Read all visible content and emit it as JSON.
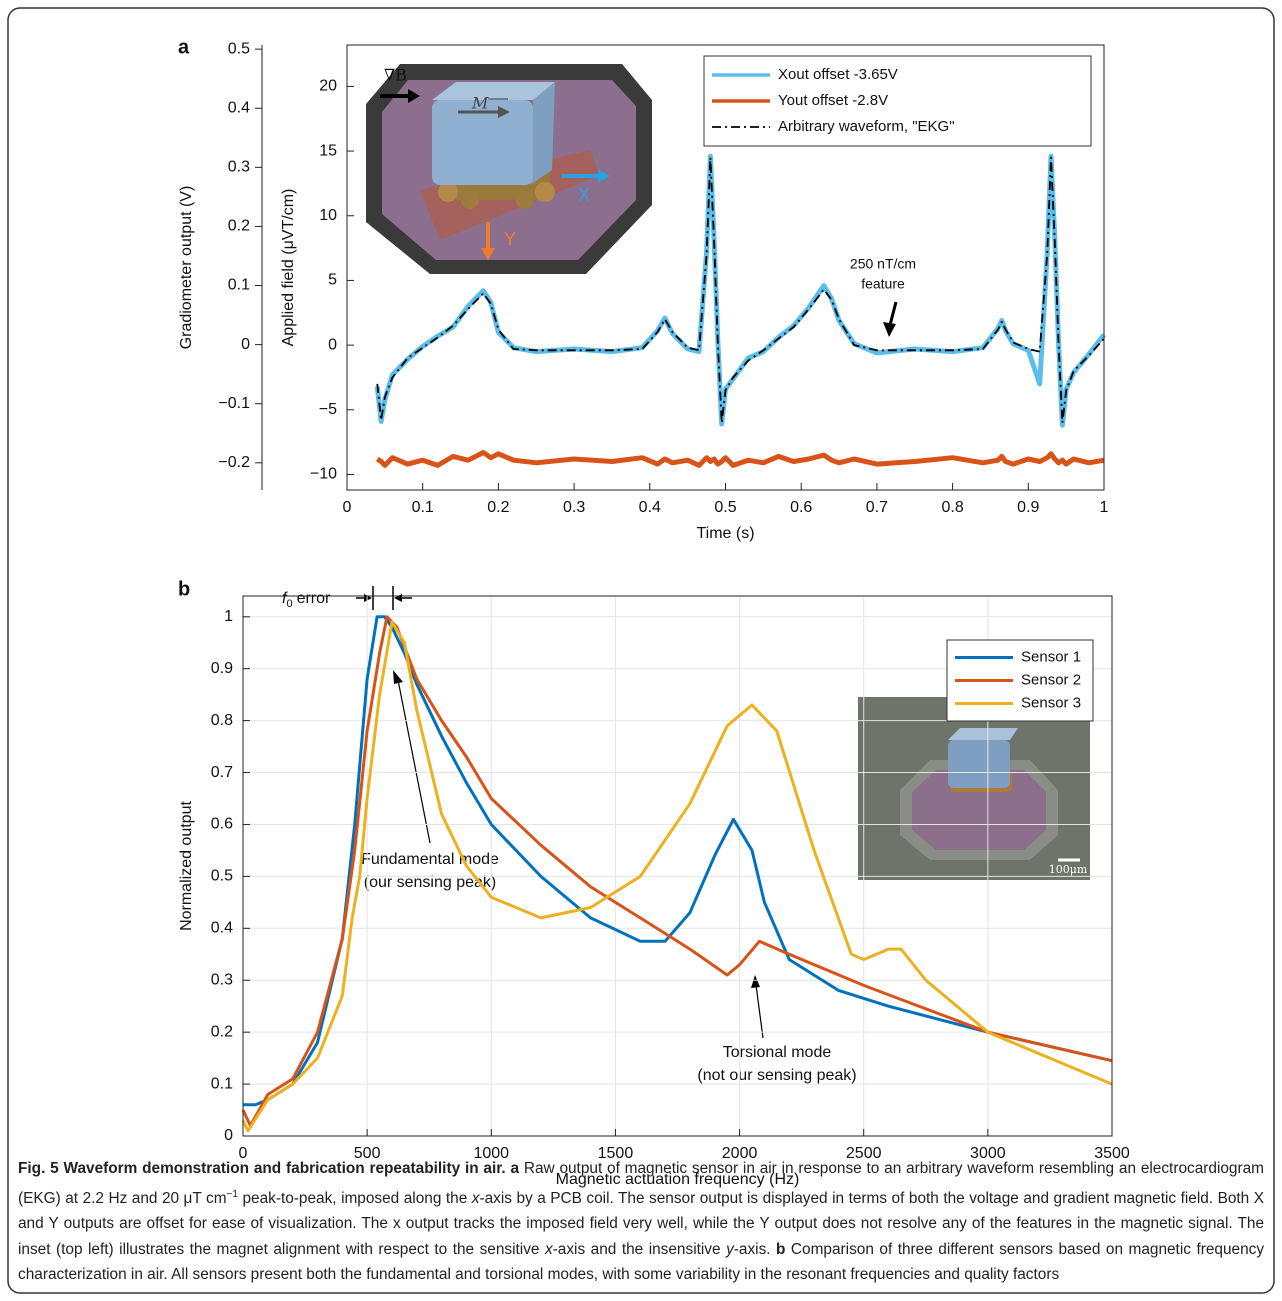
{
  "chart_data": [
    {
      "type": "line",
      "panel": "a",
      "xlabel": "Time (s)",
      "ylabel": "Applied field (μVT/cm)",
      "y2label": "Gradiometer output (V)",
      "xlim": [
        0,
        1
      ],
      "xticks": [
        0,
        0.1,
        0.2,
        0.3,
        0.4,
        0.5,
        0.6,
        0.7,
        0.8,
        0.9,
        1
      ],
      "ylim": [
        -11.2,
        23.2
      ],
      "yticks": [
        {
          "value": -10,
          "label": "−10"
        },
        {
          "value": -5,
          "label": "−5"
        },
        0,
        5,
        10,
        15,
        20
      ],
      "y2lim": [
        -0.246,
        0.507
      ],
      "y2ticks": [
        {
          "value": -0.2,
          "label": "−0.2"
        },
        {
          "value": -0.1,
          "label": "−0.1"
        },
        0,
        0.1,
        0.2,
        0.3,
        0.4,
        0.5
      ],
      "grid": false,
      "legend": "upper right",
      "x": [
        0.04,
        0.045,
        0.05,
        0.06,
        0.08,
        0.1,
        0.12,
        0.14,
        0.16,
        0.18,
        0.19,
        0.2,
        0.22,
        0.25,
        0.3,
        0.35,
        0.39,
        0.41,
        0.42,
        0.43,
        0.45,
        0.465,
        0.475,
        0.48,
        0.485,
        0.49,
        0.495,
        0.5,
        0.51,
        0.53,
        0.55,
        0.57,
        0.59,
        0.61,
        0.63,
        0.64,
        0.65,
        0.67,
        0.7,
        0.75,
        0.8,
        0.84,
        0.86,
        0.865,
        0.87,
        0.88,
        0.9,
        0.915,
        0.925,
        0.93,
        0.935,
        0.94,
        0.945,
        0.95,
        0.96,
        0.98,
        1.0
      ],
      "series": [
        {
          "name": "Xout offset -3.65V",
          "color": "#5bbde9",
          "width": 5,
          "dash": "solid",
          "values": [
            -3.2,
            -5.9,
            -4.2,
            -2.3,
            -1.1,
            -0.1,
            0.7,
            1.4,
            3.0,
            4.2,
            3.3,
            1.0,
            -0.2,
            -0.5,
            -0.3,
            -0.5,
            -0.2,
            1.1,
            2.1,
            0.9,
            -0.3,
            -0.5,
            7.2,
            14.6,
            8.1,
            0.2,
            -6.1,
            -3.4,
            -2.6,
            -1.0,
            -0.5,
            0.6,
            1.5,
            2.9,
            4.6,
            3.6,
            1.9,
            0.1,
            -0.6,
            -0.3,
            -0.5,
            -0.2,
            1.3,
            1.9,
            1.1,
            0.1,
            -0.4,
            -3.0,
            7.1,
            14.6,
            8.2,
            0.1,
            -6.2,
            -3.4,
            -2.1,
            -0.7,
            0.8
          ]
        },
        {
          "name": "Yout offset -2.8V",
          "color": "#d95319",
          "width": 5,
          "dash": "solid",
          "values": [
            -8.8,
            -9.0,
            -9.3,
            -8.7,
            -9.2,
            -8.9,
            -9.3,
            -8.6,
            -8.9,
            -8.3,
            -8.7,
            -8.4,
            -8.9,
            -9.1,
            -8.8,
            -9.0,
            -8.7,
            -9.2,
            -8.8,
            -9.1,
            -8.9,
            -9.3,
            -8.7,
            -9.0,
            -8.8,
            -9.2,
            -9.0,
            -8.7,
            -9.3,
            -8.9,
            -9.1,
            -8.6,
            -9.0,
            -8.8,
            -8.5,
            -8.9,
            -9.1,
            -8.8,
            -9.2,
            -9.0,
            -8.7,
            -9.1,
            -8.9,
            -8.6,
            -9.0,
            -9.2,
            -8.8,
            -9.0,
            -8.7,
            -8.4,
            -8.8,
            -9.1,
            -8.9,
            -9.2,
            -8.8,
            -9.1,
            -8.9
          ]
        },
        {
          "name": "Arbitrary waveform, \"EKG\"",
          "color": "#000000",
          "width": 1.8,
          "dash": "dashdot",
          "values": [
            -3,
            -5.8,
            -4,
            -2.5,
            -1,
            -0.2,
            0.6,
            1.5,
            2.8,
            4,
            3.2,
            1.2,
            -0.3,
            -0.4,
            -0.4,
            -0.4,
            -0.3,
            1,
            2,
            1,
            -0.2,
            -0.4,
            7,
            14.5,
            8,
            0,
            -6,
            -3.5,
            -2.5,
            -1.2,
            -0.4,
            0.5,
            1.4,
            2.8,
            4.3,
            3.5,
            2,
            0,
            -0.4,
            -0.4,
            -0.4,
            -0.3,
            1.2,
            1.8,
            1.2,
            0.2,
            -0.3,
            -0.5,
            7,
            14.5,
            8,
            0,
            -6,
            -3.5,
            -2,
            -0.8,
            0.5
          ]
        }
      ],
      "annotation": [
        "250 nT/cm",
        "feature"
      ],
      "inset_labels": [
        "∇B",
        "M",
        "X",
        "Y"
      ]
    },
    {
      "type": "line",
      "panel": "b",
      "xlabel": "Magnetic actuation frequency (Hz)",
      "ylabel": "Normalized output",
      "xlim": [
        0,
        3500
      ],
      "xticks": [
        0,
        500,
        1000,
        1500,
        2000,
        2500,
        3000,
        3500
      ],
      "ylim": [
        0,
        1.04
      ],
      "yticks": [
        0,
        0.1,
        0.2,
        0.3,
        0.4,
        0.5,
        0.6,
        0.7,
        0.8,
        0.9,
        1
      ],
      "grid": true,
      "legend": "upper right",
      "series": [
        {
          "name": "Sensor 1",
          "color": "#0072bd",
          "width": 3,
          "dash": "solid",
          "x": [
            0,
            50,
            100,
            200,
            300,
            400,
            450,
            500,
            540,
            570,
            600,
            650,
            700,
            800,
            900,
            1000,
            1200,
            1400,
            1600,
            1700,
            1800,
            1900,
            1975,
            2050,
            2100,
            2200,
            2400,
            2600,
            3000,
            3500
          ],
          "values": [
            0.06,
            0.06,
            0.07,
            0.1,
            0.18,
            0.38,
            0.6,
            0.88,
            1.0,
            1.0,
            0.98,
            0.93,
            0.87,
            0.77,
            0.68,
            0.6,
            0.5,
            0.42,
            0.375,
            0.375,
            0.43,
            0.54,
            0.61,
            0.55,
            0.45,
            0.34,
            0.28,
            0.25,
            0.2,
            0.145
          ]
        },
        {
          "name": "Sensor 2",
          "color": "#d95319",
          "width": 3,
          "dash": "solid",
          "x": [
            0,
            30,
            100,
            200,
            300,
            400,
            450,
            500,
            550,
            580,
            620,
            700,
            800,
            900,
            1000,
            1200,
            1400,
            1600,
            1800,
            1950,
            2000,
            2080,
            2200,
            2500,
            3000,
            3500
          ],
          "values": [
            0.05,
            0.02,
            0.08,
            0.11,
            0.2,
            0.38,
            0.55,
            0.78,
            0.93,
            1.0,
            0.98,
            0.88,
            0.8,
            0.73,
            0.65,
            0.56,
            0.48,
            0.42,
            0.36,
            0.31,
            0.33,
            0.375,
            0.35,
            0.29,
            0.2,
            0.145
          ]
        },
        {
          "name": "Sensor 3",
          "color": "#edb120",
          "width": 3,
          "dash": "solid",
          "x": [
            0,
            20,
            100,
            200,
            300,
            400,
            440,
            470,
            500,
            550,
            600,
            650,
            700,
            800,
            900,
            1000,
            1200,
            1400,
            1600,
            1800,
            1950,
            2050,
            2150,
            2300,
            2450,
            2500,
            2600,
            2650,
            2750,
            3000,
            3500
          ],
          "values": [
            0.03,
            0.01,
            0.07,
            0.1,
            0.15,
            0.27,
            0.42,
            0.5,
            0.65,
            0.85,
            0.99,
            0.95,
            0.82,
            0.62,
            0.52,
            0.46,
            0.42,
            0.44,
            0.5,
            0.64,
            0.79,
            0.83,
            0.78,
            0.55,
            0.35,
            0.34,
            0.36,
            0.36,
            0.3,
            0.2,
            0.1
          ]
        }
      ],
      "f0_label": {
        "symbol": "f",
        "subscript": "0",
        "text": "error"
      },
      "annotations": [
        [
          "Fundamental mode",
          "(our sensing peak)"
        ],
        [
          "Torsional mode",
          "(not our sensing peak)"
        ]
      ],
      "inset_scale": "100μm"
    }
  ],
  "caption": {
    "parts": [
      "Fig. 5 Waveform demonstration and fabrication repeatability in air. a",
      " Raw output of magnetic sensor in air in response to an arbitrary waveform resembling an electrocardiogram (EKG) at 2.2 Hz and 20 μT cm",
      "−1",
      " peak-to-peak, imposed along the ",
      "x",
      "-axis by a PCB coil. The sensor output is displayed in terms of both the voltage and gradient magnetic field. Both X and Y outputs are offset for ease of visualization. The x output tracks the imposed field very well, while the Y output does not resolve any of the features in the magnetic signal. The inset (top left) illustrates the magnet alignment with respect to the sensitive ",
      "x",
      "-axis and the insensitive ",
      "y",
      "-axis. ",
      "b",
      " Comparison of three different sensors based on magnetic frequency characterization in air. All sensors present both the fundamental and torsional modes, with some variability in the resonant frequencies and quality factors"
    ]
  }
}
